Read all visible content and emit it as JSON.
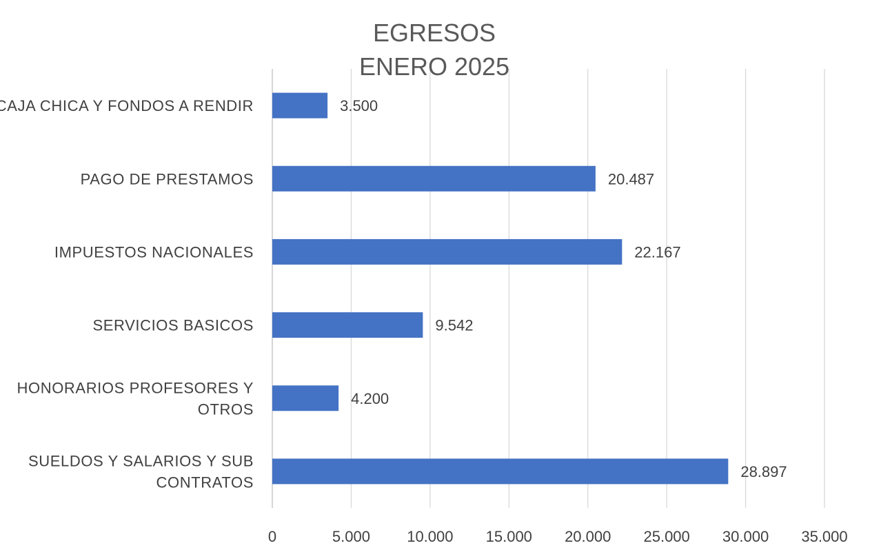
{
  "chart_data": {
    "type": "bar",
    "orientation": "horizontal",
    "title": [
      "EGRESOS",
      "ENERO 2025"
    ],
    "categories": [
      [
        "CAJA CHICA Y FONDOS A RENDIR"
      ],
      [
        "PAGO DE PRESTAMOS"
      ],
      [
        "IMPUESTOS NACIONALES"
      ],
      [
        "SERVICIOS BASICOS"
      ],
      [
        "HONORARIOS PROFESORES Y",
        "OTROS"
      ],
      [
        "SUELDOS Y SALARIOS Y SUB",
        "CONTRATOS"
      ]
    ],
    "values": [
      3500,
      20487,
      22167,
      9542,
      4200,
      28897
    ],
    "value_labels": [
      "3.500",
      "20.487",
      "22.167",
      "9.542",
      "4.200",
      "28.897"
    ],
    "xlim": [
      0,
      35000
    ],
    "ticks": [
      0,
      5000,
      10000,
      15000,
      20000,
      25000,
      30000,
      35000
    ],
    "tick_labels": [
      "0",
      "5.000",
      "10.000",
      "15.000",
      "20.000",
      "25.000",
      "30.000",
      "35.000"
    ],
    "grid": true,
    "legend": "none",
    "bar_color": "#4472C4"
  }
}
